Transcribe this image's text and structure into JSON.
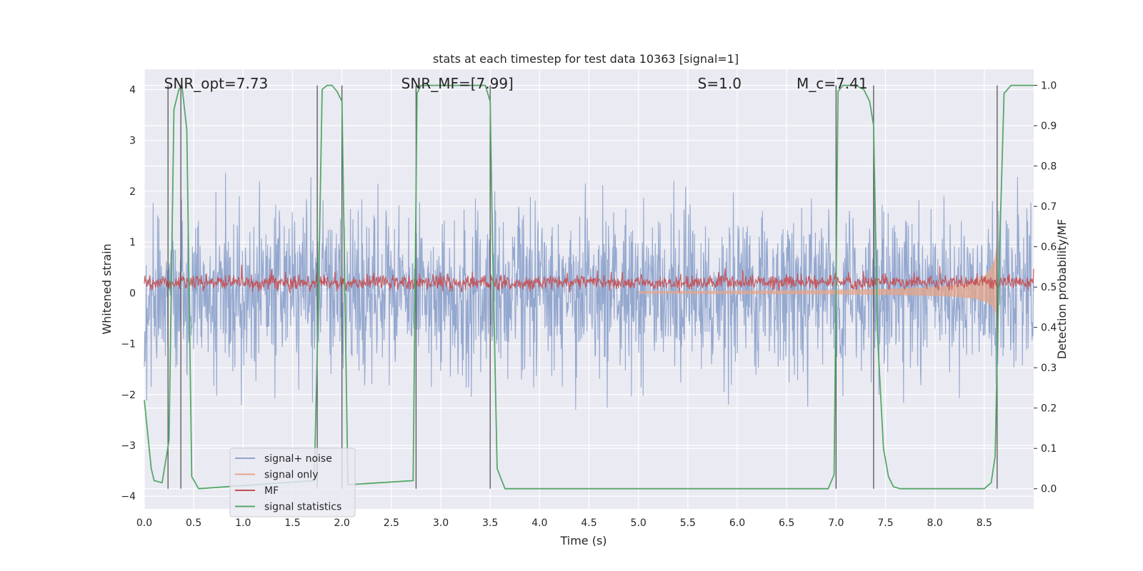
{
  "chart_data": {
    "type": "line",
    "title": "stats at each timestep for test data 10363 [signal=1]",
    "xlabel": "Time (s)",
    "ylabel": "Whitened strain",
    "y2label": "Detection probability/MF",
    "xlim": [
      0.0,
      9.0
    ],
    "ylim": [
      -4.25,
      4.4
    ],
    "y2lim": [
      -0.05,
      1.04
    ],
    "xticks": [
      "0.0",
      "0.5",
      "1.0",
      "1.5",
      "2.0",
      "2.5",
      "3.0",
      "3.5",
      "4.0",
      "4.5",
      "5.0",
      "5.5",
      "6.0",
      "6.5",
      "7.0",
      "7.5",
      "8.0",
      "8.5"
    ],
    "yticks": [
      "4",
      "3",
      "2",
      "1",
      "0",
      "−1",
      "−2",
      "−3",
      "−4"
    ],
    "y2ticks": [
      "1.0",
      "0.9",
      "0.8",
      "0.7",
      "0.6",
      "0.5",
      "0.4",
      "0.3",
      "0.2",
      "0.1",
      "0.0"
    ],
    "grid": true,
    "legend_position": "lower-left",
    "annotations": [
      {
        "text": "SNR_opt=7.73",
        "x": 0.2
      },
      {
        "text": "SNR_MF=[7.99]",
        "x": 2.6
      },
      {
        "text": "S=1.0",
        "x": 5.6
      },
      {
        "text": "M_c=7.41",
        "x": 6.6
      }
    ],
    "series": [
      {
        "name": "signal+ noise",
        "color": "#8fa4cc",
        "axis": "left",
        "style": "noise",
        "description_range": [
          -3.9,
          3.8
        ]
      },
      {
        "name": "signal only",
        "color": "#e6a58a",
        "axis": "left",
        "style": "chirp",
        "peak_time": 8.63,
        "peak_amplitude": 1.0
      },
      {
        "name": "MF",
        "color": "#c44e52",
        "axis": "left",
        "style": "band",
        "level": 0.2
      },
      {
        "name": "signal statistics",
        "color": "#55a868",
        "axis": "right",
        "x": [
          0.0,
          0.07,
          0.1,
          0.18,
          0.25,
          0.3,
          0.35,
          0.38,
          0.43,
          0.48,
          0.55,
          1.72,
          1.76,
          1.8,
          1.85,
          1.9,
          1.95,
          2.0,
          2.06,
          2.72,
          2.76,
          2.8,
          2.85,
          2.95,
          3.1,
          3.3,
          3.45,
          3.5,
          3.52,
          3.57,
          3.65,
          6.92,
          6.98,
          7.02,
          7.07,
          7.12,
          7.2,
          7.28,
          7.34,
          7.38,
          7.42,
          7.48,
          7.53,
          7.58,
          7.65,
          7.8,
          8.0,
          8.5,
          8.57,
          8.61,
          8.65,
          8.7,
          8.77,
          8.85,
          9.0
        ],
        "y": [
          0.22,
          0.05,
          0.02,
          0.015,
          0.12,
          0.94,
          0.99,
          1.0,
          0.89,
          0.03,
          0.0,
          0.02,
          0.45,
          0.99,
          1.0,
          1.0,
          0.985,
          0.96,
          0.01,
          0.02,
          0.98,
          1.0,
          1.0,
          1.0,
          1.0,
          1.0,
          1.0,
          0.96,
          0.66,
          0.05,
          0.0,
          0.0,
          0.035,
          0.985,
          1.0,
          1.0,
          1.0,
          0.99,
          0.96,
          0.9,
          0.38,
          0.1,
          0.03,
          0.005,
          0.0,
          0.0,
          0.0,
          0.0,
          0.015,
          0.08,
          0.55,
          0.98,
          1.0,
          1.0,
          1.0
        ]
      }
    ],
    "vertical_lines": [
      0.24,
      0.37,
      1.75,
      2.0,
      2.75,
      3.5,
      7.0,
      7.38,
      8.63
    ]
  }
}
